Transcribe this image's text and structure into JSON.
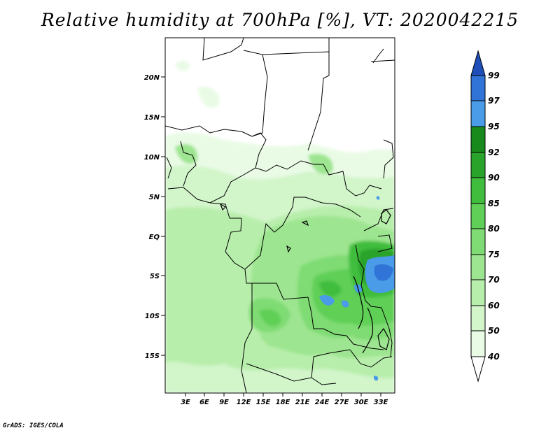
{
  "title": "Relative humidity at 700hPa [%], VT: 2020042215",
  "credit": "GrADS: IGES/COLA",
  "map": {
    "lat_labels": [
      "20N",
      "15N",
      "10N",
      "5N",
      "EQ",
      "5S",
      "10S",
      "15S"
    ],
    "lon_labels": [
      "3E",
      "6E",
      "9E",
      "12E",
      "15E",
      "18E",
      "21E",
      "24E",
      "27E",
      "30E",
      "33E"
    ]
  },
  "colorbar": {
    "levels": [
      "40",
      "50",
      "60",
      "70",
      "75",
      "80",
      "85",
      "90",
      "92",
      "95",
      "97",
      "99"
    ],
    "colors": {
      "lt40": "#ffffff",
      "40_50": "#e9fbe5",
      "50_60": "#d2f5ca",
      "60_70": "#b8eeac",
      "70_75": "#9de590",
      "75_80": "#7fdb73",
      "80_85": "#5fcf57",
      "85_90": "#41bd3e",
      "90_92": "#2aa32a",
      "92_95": "#178a1b",
      "95_97": "#4a9be8",
      "97_99": "#2f74d6",
      "gt99": "#1e4fb8"
    }
  }
}
